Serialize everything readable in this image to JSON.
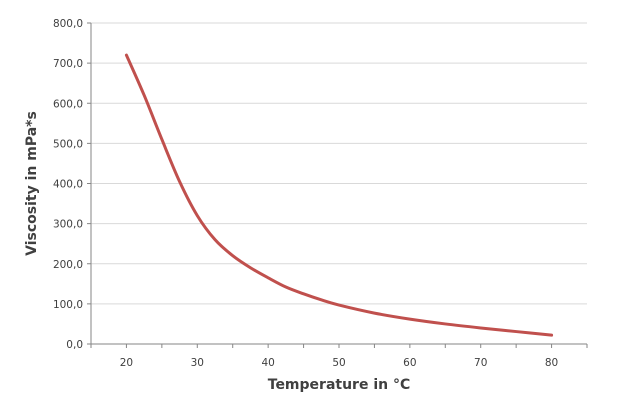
{
  "chart_data": {
    "type": "line",
    "title": "",
    "xlabel": "Temperature in °C",
    "ylabel": "Viscosity in mPa*s",
    "xlim": [
      15,
      85
    ],
    "ylim": [
      0,
      800
    ],
    "x_ticks": [
      20,
      30,
      40,
      50,
      60,
      70,
      80
    ],
    "x_tick_labels": [
      "20",
      "30",
      "40",
      "50",
      "60",
      "70",
      "80"
    ],
    "y_ticks": [
      0,
      100,
      200,
      300,
      400,
      500,
      600,
      700,
      800
    ],
    "y_tick_labels": [
      "0,0",
      "100,0",
      "200,0",
      "300,0",
      "400,0",
      "500,0",
      "600,0",
      "700,0",
      "800,0"
    ],
    "grid": "horizontal",
    "legend": "none",
    "series": [
      {
        "color": "#c0504d",
        "x": [
          20,
          22.5,
          25,
          27.5,
          30,
          32.5,
          35,
          37.5,
          40,
          42.5,
          45,
          47.5,
          50,
          55,
          60,
          65,
          70,
          75,
          80
        ],
        "y": [
          720,
          620,
          510,
          405,
          320,
          260,
          220,
          190,
          165,
          142,
          125,
          110,
          97,
          77,
          62,
          50,
          40,
          31,
          22
        ]
      }
    ]
  }
}
